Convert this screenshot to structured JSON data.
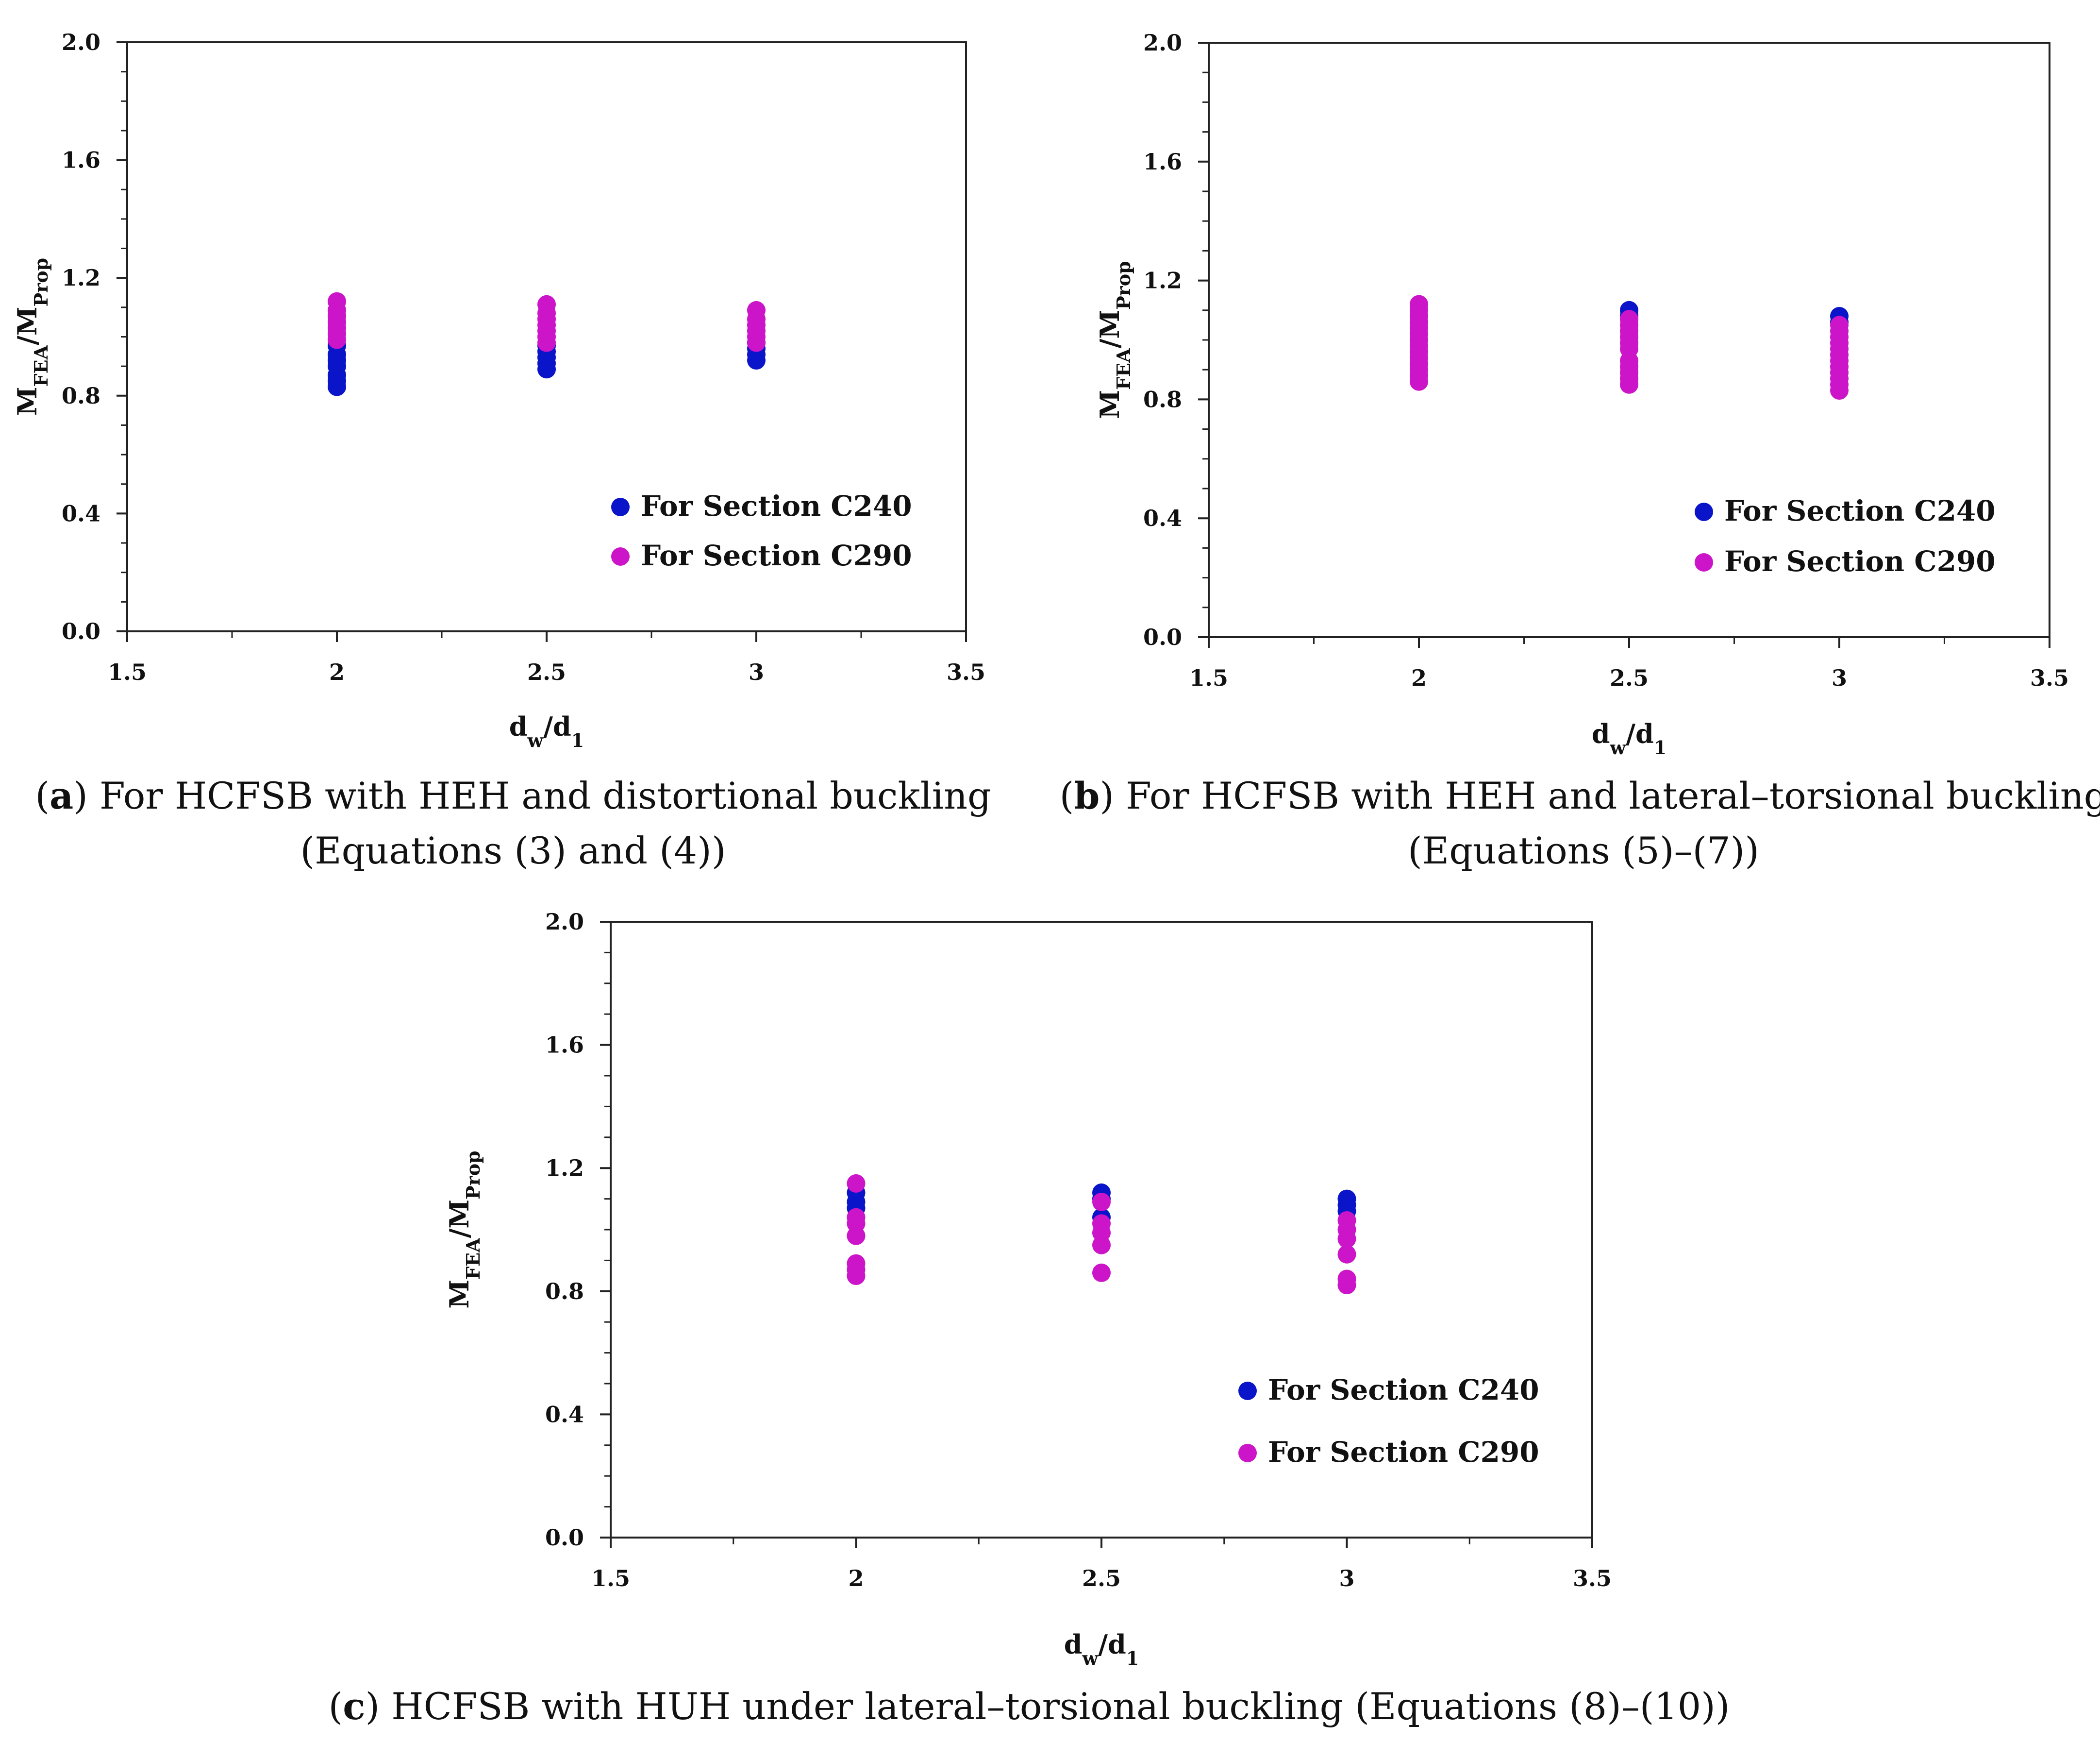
{
  "chart_data": [
    {
      "type": "scatter",
      "panel": "a",
      "caption_lines": [
        {
          "prefix": "(",
          "letter": "a",
          "text": ") For HCFSB with HEH and distortional buckling"
        },
        {
          "text": "(Equations (3) and (4))"
        }
      ],
      "xlabel": {
        "main": "d",
        "sub1": "w",
        "mid": "/d",
        "sub2": "1"
      },
      "ylabel": {
        "main": "M",
        "sub1": "FEA",
        "mid": "/M",
        "sub2": "Prop"
      },
      "xlim": [
        1.5,
        3.5
      ],
      "ylim": [
        0.0,
        2.0
      ],
      "x_ticks": [
        "1.5",
        "2",
        "2.5",
        "3",
        "3.5"
      ],
      "y_ticks": [
        "0.0",
        "0.4",
        "0.8",
        "1.2",
        "1.6",
        "2.0"
      ],
      "legend": [
        "For Section C240",
        "For Section C290"
      ],
      "series": [
        {
          "name": "For Section C240",
          "color": "#0a14c8",
          "points": [
            [
              2,
              0.83
            ],
            [
              2,
              0.85
            ],
            [
              2,
              0.87
            ],
            [
              2,
              0.9
            ],
            [
              2,
              0.92
            ],
            [
              2,
              0.94
            ],
            [
              2,
              0.97
            ],
            [
              2.5,
              0.89
            ],
            [
              2.5,
              0.91
            ],
            [
              2.5,
              0.93
            ],
            [
              2.5,
              0.95
            ],
            [
              2.5,
              0.97
            ],
            [
              3,
              0.92
            ],
            [
              3,
              0.94
            ],
            [
              3,
              0.96
            ],
            [
              3,
              0.98
            ]
          ]
        },
        {
          "name": "For Section C290",
          "color": "#cc14c8",
          "points": [
            [
              2,
              0.99
            ],
            [
              2,
              1.01
            ],
            [
              2,
              1.03
            ],
            [
              2,
              1.05
            ],
            [
              2,
              1.07
            ],
            [
              2,
              1.09
            ],
            [
              2,
              1.12
            ],
            [
              2.5,
              0.98
            ],
            [
              2.5,
              1.0
            ],
            [
              2.5,
              1.02
            ],
            [
              2.5,
              1.04
            ],
            [
              2.5,
              1.06
            ],
            [
              2.5,
              1.08
            ],
            [
              2.5,
              1.11
            ],
            [
              3,
              0.98
            ],
            [
              3,
              1.0
            ],
            [
              3,
              1.02
            ],
            [
              3,
              1.04
            ],
            [
              3,
              1.06
            ],
            [
              3,
              1.09
            ]
          ]
        }
      ]
    },
    {
      "type": "scatter",
      "panel": "b",
      "caption_lines": [
        {
          "prefix": "(",
          "letter": "b",
          "text": ") For HCFSB with HEH and lateral–torsional buckling"
        },
        {
          "text": "(Equations (5)–(7))"
        }
      ],
      "xlabel": {
        "main": "d",
        "sub1": "w",
        "mid": "/d",
        "sub2": "1"
      },
      "ylabel": {
        "main": "M",
        "sub1": "FEA",
        "mid": "/M",
        "sub2": "Prop"
      },
      "xlim": [
        1.5,
        3.5
      ],
      "ylim": [
        0.0,
        2.0
      ],
      "x_ticks": [
        "1.5",
        "2",
        "2.5",
        "3",
        "3.5"
      ],
      "y_ticks": [
        "0.0",
        "0.4",
        "0.8",
        "1.2",
        "1.6",
        "2.0"
      ],
      "legend": [
        "For Section C240",
        "For Section C290"
      ],
      "series": [
        {
          "name": "For Section C240",
          "color": "#0a14c8",
          "points": [
            [
              2,
              1.06
            ],
            [
              2.5,
              1.1
            ],
            [
              2.5,
              1.08
            ],
            [
              3,
              1.08
            ],
            [
              3,
              1.06
            ]
          ]
        },
        {
          "name": "For Section C290",
          "color": "#cc14c8",
          "points": [
            [
              2,
              0.86
            ],
            [
              2,
              0.88
            ],
            [
              2,
              0.9
            ],
            [
              2,
              0.92
            ],
            [
              2,
              0.94
            ],
            [
              2,
              0.96
            ],
            [
              2,
              0.98
            ],
            [
              2,
              1.0
            ],
            [
              2,
              1.02
            ],
            [
              2,
              1.04
            ],
            [
              2,
              1.06
            ],
            [
              2,
              1.08
            ],
            [
              2,
              1.1
            ],
            [
              2,
              1.12
            ],
            [
              2.5,
              0.85
            ],
            [
              2.5,
              0.87
            ],
            [
              2.5,
              0.89
            ],
            [
              2.5,
              0.91
            ],
            [
              2.5,
              0.93
            ],
            [
              2.5,
              0.97
            ],
            [
              2.5,
              0.99
            ],
            [
              2.5,
              1.01
            ],
            [
              2.5,
              1.03
            ],
            [
              2.5,
              1.05
            ],
            [
              2.5,
              1.07
            ],
            [
              3,
              0.83
            ],
            [
              3,
              0.85
            ],
            [
              3,
              0.87
            ],
            [
              3,
              0.89
            ],
            [
              3,
              0.91
            ],
            [
              3,
              0.93
            ],
            [
              3,
              0.95
            ],
            [
              3,
              0.97
            ],
            [
              3,
              0.99
            ],
            [
              3,
              1.01
            ],
            [
              3,
              1.03
            ],
            [
              3,
              1.05
            ]
          ]
        }
      ]
    },
    {
      "type": "scatter",
      "panel": "c",
      "caption_lines": [
        {
          "prefix": "(",
          "letter": "c",
          "text": ") HCFSB with HUH under lateral–torsional buckling (Equations (8)–(10))"
        }
      ],
      "xlabel": {
        "main": "d",
        "sub1": "w",
        "mid": "/d",
        "sub2": "1"
      },
      "ylabel": {
        "main": "M",
        "sub1": "FEA",
        "mid": "/M",
        "sub2": "Prop"
      },
      "xlim": [
        1.5,
        3.5
      ],
      "ylim": [
        0.0,
        2.0
      ],
      "x_ticks": [
        "1.5",
        "2",
        "2.5",
        "3",
        "3.5"
      ],
      "y_ticks": [
        "0.0",
        "0.4",
        "0.8",
        "1.2",
        "1.6",
        "2.0"
      ],
      "legend": [
        "For Section C240",
        "For Section C290"
      ],
      "series": [
        {
          "name": "For Section C240",
          "color": "#0a14c8",
          "points": [
            [
              2,
              1.12
            ],
            [
              2,
              1.09
            ],
            [
              2,
              1.07
            ],
            [
              2.5,
              1.12
            ],
            [
              2.5,
              1.1
            ],
            [
              2.5,
              1.04
            ],
            [
              3,
              1.1
            ],
            [
              3,
              1.08
            ],
            [
              3,
              1.06
            ]
          ]
        },
        {
          "name": "For Section C290",
          "color": "#cc14c8",
          "points": [
            [
              2,
              1.15
            ],
            [
              2,
              1.04
            ],
            [
              2,
              1.02
            ],
            [
              2,
              0.98
            ],
            [
              2,
              0.89
            ],
            [
              2,
              0.87
            ],
            [
              2,
              0.85
            ],
            [
              2.5,
              1.09
            ],
            [
              2.5,
              1.02
            ],
            [
              2.5,
              0.99
            ],
            [
              2.5,
              0.95
            ],
            [
              2.5,
              0.86
            ],
            [
              3,
              1.03
            ],
            [
              3,
              1.0
            ],
            [
              3,
              0.97
            ],
            [
              3,
              0.92
            ],
            [
              3,
              0.84
            ],
            [
              3,
              0.82
            ]
          ]
        }
      ]
    }
  ]
}
